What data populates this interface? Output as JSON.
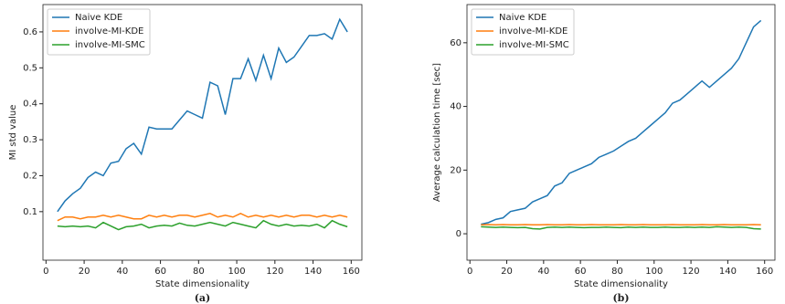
{
  "chart_data": [
    {
      "type": "line",
      "caption": "(a)",
      "x_label": "State dimensionality",
      "y_label": "MI std value",
      "x": [
        6,
        10,
        14,
        18,
        22,
        26,
        30,
        34,
        38,
        42,
        46,
        50,
        54,
        58,
        62,
        66,
        70,
        74,
        78,
        82,
        86,
        90,
        94,
        98,
        102,
        106,
        110,
        114,
        118,
        122,
        126,
        130,
        134,
        138,
        142,
        146,
        150,
        154,
        158
      ],
      "series": [
        {
          "name": "Naive KDE",
          "color": "#1f77b4",
          "values": [
            0.1,
            0.13,
            0.15,
            0.165,
            0.195,
            0.21,
            0.2,
            0.235,
            0.24,
            0.275,
            0.29,
            0.26,
            0.335,
            0.33,
            0.33,
            0.33,
            0.355,
            0.38,
            0.37,
            0.36,
            0.46,
            0.45,
            0.37,
            0.47,
            0.47,
            0.525,
            0.465,
            0.535,
            0.47,
            0.555,
            0.515,
            0.53,
            0.56,
            0.59,
            0.59,
            0.595,
            0.58,
            0.635,
            0.6
          ]
        },
        {
          "name": "involve-MI-KDE",
          "color": "#ff7f0e",
          "values": [
            0.075,
            0.085,
            0.085,
            0.08,
            0.085,
            0.085,
            0.09,
            0.085,
            0.09,
            0.085,
            0.08,
            0.08,
            0.09,
            0.085,
            0.09,
            0.085,
            0.09,
            0.09,
            0.085,
            0.09,
            0.095,
            0.085,
            0.09,
            0.085,
            0.095,
            0.085,
            0.09,
            0.085,
            0.09,
            0.085,
            0.09,
            0.085,
            0.09,
            0.09,
            0.085,
            0.09,
            0.085,
            0.09,
            0.085
          ]
        },
        {
          "name": "involve-MI-SMC",
          "color": "#2ca02c",
          "values": [
            0.06,
            0.058,
            0.06,
            0.058,
            0.06,
            0.055,
            0.07,
            0.06,
            0.05,
            0.058,
            0.06,
            0.065,
            0.055,
            0.06,
            0.062,
            0.06,
            0.068,
            0.062,
            0.06,
            0.065,
            0.07,
            0.065,
            0.06,
            0.07,
            0.065,
            0.06,
            0.055,
            0.075,
            0.065,
            0.06,
            0.065,
            0.06,
            0.062,
            0.06,
            0.065,
            0.055,
            0.075,
            0.065,
            0.058
          ]
        }
      ],
      "xlim": [
        -1.6,
        165.6
      ],
      "xticks": [
        0,
        20,
        40,
        60,
        80,
        100,
        120,
        140,
        160
      ],
      "ylim": [
        -0.035,
        0.676
      ],
      "yticks": [
        0.1,
        0.2,
        0.3,
        0.4,
        0.5,
        0.6
      ],
      "legend": "upper left"
    },
    {
      "type": "line",
      "caption": "(b)",
      "x_label": "State dimensionality",
      "y_label": "Average calculation time [sec]",
      "x": [
        6,
        10,
        14,
        18,
        22,
        26,
        30,
        34,
        38,
        42,
        46,
        50,
        54,
        58,
        62,
        66,
        70,
        74,
        78,
        82,
        86,
        90,
        94,
        98,
        102,
        106,
        110,
        114,
        118,
        122,
        126,
        130,
        134,
        138,
        142,
        146,
        150,
        154,
        158
      ],
      "series": [
        {
          "name": "Naive KDE",
          "color": "#1f77b4",
          "values": [
            3,
            3.5,
            4.5,
            5,
            7,
            7.5,
            8,
            10,
            11,
            12,
            15,
            16,
            19,
            20,
            21,
            22,
            24,
            25,
            26,
            27.5,
            29,
            30,
            32,
            34,
            36,
            38,
            41,
            42,
            44,
            46,
            48,
            46,
            48,
            50,
            52,
            55,
            60,
            65,
            67
          ]
        },
        {
          "name": "involve-MI-KDE",
          "color": "#ff7f0e",
          "values": [
            2.8,
            2.9,
            2.8,
            2.9,
            2.8,
            2.8,
            2.9,
            2.8,
            2.8,
            2.9,
            2.8,
            2.8,
            2.9,
            2.8,
            2.8,
            2.9,
            2.8,
            2.8,
            2.8,
            2.9,
            2.8,
            2.8,
            2.9,
            2.8,
            2.8,
            2.8,
            2.9,
            2.8,
            2.8,
            2.8,
            2.9,
            2.8,
            2.8,
            2.9,
            2.8,
            2.8,
            2.8,
            2.9,
            2.8
          ]
        },
        {
          "name": "involve-MI-SMC",
          "color": "#2ca02c",
          "values": [
            2.2,
            2.1,
            2.0,
            2.1,
            2.0,
            1.9,
            2.0,
            1.6,
            1.5,
            2.0,
            2.1,
            2.0,
            2.1,
            2.0,
            1.9,
            2.0,
            2.0,
            2.1,
            2.0,
            1.9,
            2.1,
            2.0,
            2.1,
            2.0,
            2.0,
            2.1,
            2.0,
            2.0,
            2.1,
            2.0,
            2.1,
            2.0,
            2.2,
            2.1,
            2.0,
            2.1,
            2.0,
            1.6,
            1.5
          ]
        }
      ],
      "xlim": [
        -1.6,
        165.6
      ],
      "xticks": [
        0,
        20,
        40,
        60,
        80,
        100,
        120,
        140,
        160
      ],
      "ylim": [
        -8.3,
        72
      ],
      "yticks": [
        0,
        20,
        40,
        60
      ],
      "legend": "upper left"
    }
  ]
}
